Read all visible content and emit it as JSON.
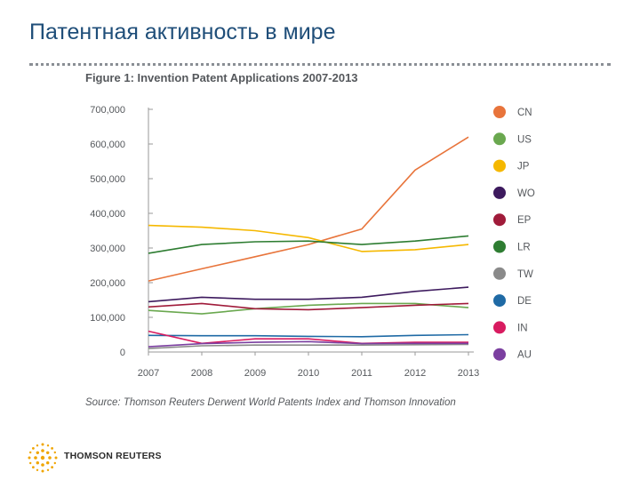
{
  "slide_title": "Патентная активность в мире",
  "footer": {
    "brand": "THOMSON REUTERS"
  },
  "colors": {
    "title": "#1f4e79",
    "axis_text": "#55585c",
    "axis_line": "#9a9a9a"
  },
  "chart_data": {
    "type": "line",
    "title": "Figure 1: Invention Patent Applications 2007-2013",
    "source": "Source: Thomson Reuters Derwent World Patents Index and Thomson Innovation",
    "x": [
      2007,
      2008,
      2009,
      2010,
      2011,
      2012,
      2013
    ],
    "x_tick_labels": [
      "2007",
      "2008",
      "2009",
      "2010",
      "2011",
      "2012",
      "2013"
    ],
    "ylim": [
      0,
      700000
    ],
    "y_ticks": [
      0,
      100000,
      200000,
      300000,
      400000,
      500000,
      600000,
      700000
    ],
    "y_tick_labels": [
      "0",
      "100,000",
      "200,000",
      "300,000",
      "400,000",
      "500,000",
      "600,000",
      "700,000"
    ],
    "legend_position": "right",
    "series": [
      {
        "name": "CN",
        "color": "#e8743b",
        "values": [
          205000,
          240000,
          275000,
          310000,
          355000,
          525000,
          620000
        ]
      },
      {
        "name": "US",
        "color": "#6aa84f",
        "values": [
          120000,
          110000,
          125000,
          135000,
          140000,
          140000,
          128000
        ]
      },
      {
        "name": "JP",
        "color": "#f5b800",
        "values": [
          365000,
          360000,
          350000,
          330000,
          290000,
          295000,
          310000
        ]
      },
      {
        "name": "WO",
        "color": "#3d1a5e",
        "values": [
          145000,
          158000,
          152000,
          152000,
          158000,
          175000,
          187000
        ]
      },
      {
        "name": "EP",
        "color": "#a01b3a",
        "values": [
          130000,
          140000,
          125000,
          122000,
          128000,
          135000,
          140000
        ]
      },
      {
        "name": "LR",
        "color": "#2e7d32",
        "values": [
          285000,
          310000,
          318000,
          320000,
          310000,
          320000,
          335000
        ]
      },
      {
        "name": "TW",
        "color": "#8a8a8a",
        "values": [
          10000,
          18000,
          20000,
          20000,
          20000,
          21000,
          22000
        ]
      },
      {
        "name": "DE",
        "color": "#1f6aa5",
        "values": [
          48000,
          47000,
          47000,
          45000,
          44000,
          48000,
          50000
        ]
      },
      {
        "name": "IN",
        "color": "#d81b60",
        "values": [
          60000,
          25000,
          38000,
          38000,
          25000,
          28000,
          28000
        ]
      },
      {
        "name": "AU",
        "color": "#7b3fa0",
        "values": [
          15000,
          24000,
          28000,
          30000,
          24000,
          25000,
          25000
        ]
      }
    ]
  }
}
